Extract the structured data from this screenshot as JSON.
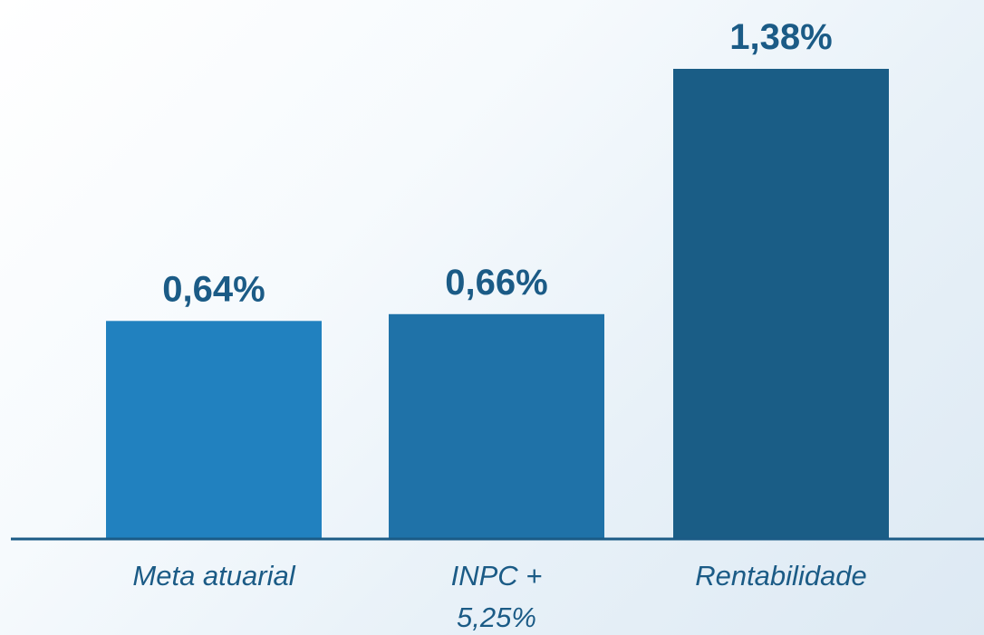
{
  "chart_data": {
    "type": "bar",
    "categories": [
      [
        "Meta atuarial"
      ],
      [
        "INPC +",
        "5,25%"
      ],
      [
        "Rentabilidade"
      ]
    ],
    "values": [
      0.64,
      0.66,
      1.38
    ],
    "value_labels": [
      "0,64%",
      "0,66%",
      "1,38%"
    ],
    "ylim": [
      0,
      1.38
    ],
    "grid": false,
    "legend": "none",
    "colors": [
      "#2181bf",
      "#1f72a8",
      "#1a5d86"
    ],
    "axis_color": "#1b5b86",
    "label_color": "#1b5b86"
  }
}
